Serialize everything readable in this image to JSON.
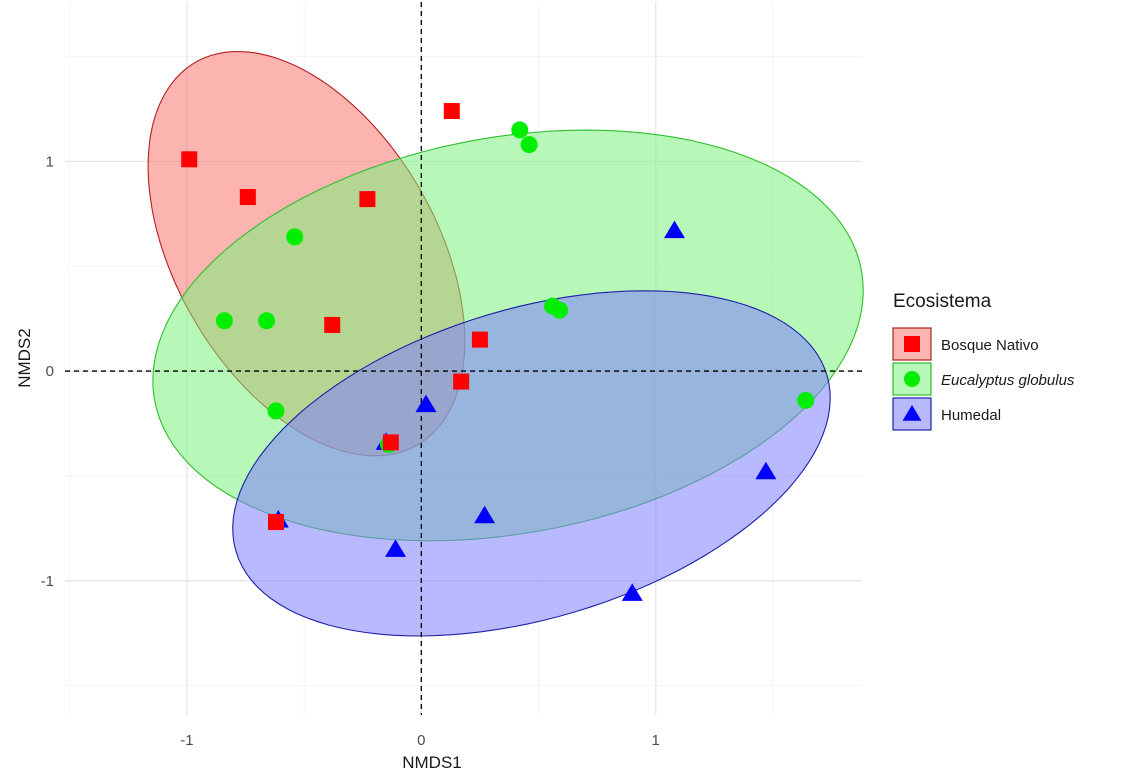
{
  "chart_data": {
    "type": "scatter",
    "title": "",
    "xlabel": "NMDS1",
    "ylabel": "NMDS2",
    "xlim": [
      -1.52,
      1.88
    ],
    "ylim": [
      -1.64,
      1.76
    ],
    "x_ticks": [
      -1,
      0,
      1
    ],
    "y_ticks": [
      -1,
      0,
      1
    ],
    "x_tick_labels": [
      "-1",
      "0",
      "1"
    ],
    "y_tick_labels": [
      "-1",
      "0",
      "1"
    ],
    "grid": true,
    "reference_lines": {
      "x": 0,
      "y": 0,
      "style": "dashed"
    },
    "legend": {
      "title": "Ecosistema",
      "position": "right"
    },
    "series": [
      {
        "name": "Bosque Nativo",
        "marker": "square",
        "color": "#ff0000",
        "fill": "#f8766d",
        "italic": false,
        "points": [
          {
            "x": -0.99,
            "y": 1.01
          },
          {
            "x": -0.74,
            "y": 0.83
          },
          {
            "x": -0.23,
            "y": 0.82
          },
          {
            "x": 0.13,
            "y": 1.24
          },
          {
            "x": -0.38,
            "y": 0.22
          },
          {
            "x": 0.25,
            "y": 0.15
          },
          {
            "x": 0.17,
            "y": -0.05
          },
          {
            "x": -0.13,
            "y": -0.34
          },
          {
            "x": -0.62,
            "y": -0.72
          }
        ],
        "ellipse": {
          "cx": -0.49,
          "cy": 0.56,
          "rx": 1.03,
          "ry": 0.57,
          "angle": -65
        }
      },
      {
        "name": "Eucalyptus globulus",
        "marker": "circle",
        "color": "#00ee00",
        "fill": "#7cf07c",
        "italic": true,
        "points": [
          {
            "x": 0.42,
            "y": 1.15
          },
          {
            "x": 0.46,
            "y": 1.08
          },
          {
            "x": -0.54,
            "y": 0.64
          },
          {
            "x": -0.84,
            "y": 0.24
          },
          {
            "x": -0.66,
            "y": 0.24
          },
          {
            "x": 0.56,
            "y": 0.31
          },
          {
            "x": 0.59,
            "y": 0.29
          },
          {
            "x": -0.62,
            "y": -0.19
          },
          {
            "x": -0.14,
            "y": -0.35
          },
          {
            "x": 1.64,
            "y": -0.14
          }
        ],
        "ellipse": {
          "cx": 0.37,
          "cy": 0.17,
          "rx": 1.54,
          "ry": 0.94,
          "angle": 13
        }
      },
      {
        "name": "Humedal",
        "marker": "triangle",
        "color": "#0000ff",
        "fill": "#8080ff",
        "italic": false,
        "points": [
          {
            "x": 1.08,
            "y": 0.67
          },
          {
            "x": 0.02,
            "y": -0.16
          },
          {
            "x": -0.15,
            "y": -0.34
          },
          {
            "x": -0.61,
            "y": -0.71
          },
          {
            "x": 0.27,
            "y": -0.69
          },
          {
            "x": -0.11,
            "y": -0.85
          },
          {
            "x": 1.47,
            "y": -0.48
          },
          {
            "x": 0.9,
            "y": -1.06
          }
        ],
        "ellipse": {
          "cx": 0.47,
          "cy": -0.44,
          "rx": 1.33,
          "ry": 0.73,
          "angle": 20
        }
      }
    ]
  }
}
